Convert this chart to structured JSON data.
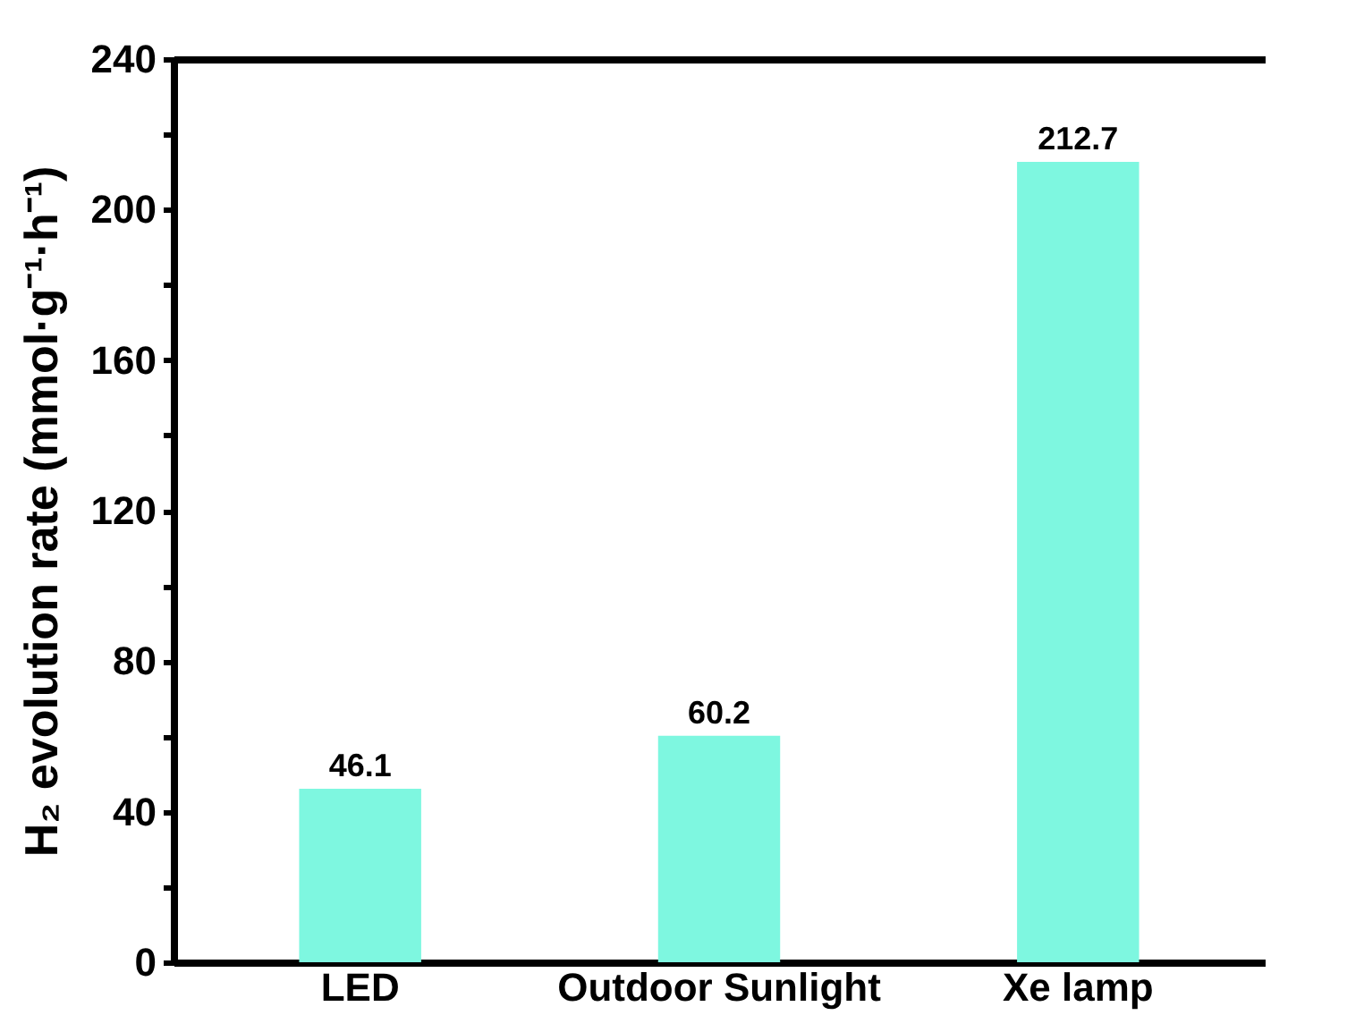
{
  "chart_data": {
    "type": "bar",
    "ylabel": "H₂ evolution rate (mmol·g⁻¹·h⁻¹)",
    "categories": [
      "LED",
      "Outdoor Sunlight",
      "Xe lamp"
    ],
    "values": [
      46.1,
      60.2,
      212.7
    ],
    "color": "#7ef7e0",
    "ylim": [
      0,
      240
    ],
    "yticks": [
      0,
      {
        "value": 20,
        "label": null
      },
      40,
      {
        "value": 60,
        "label": null
      },
      80,
      {
        "value": 100,
        "label": null
      },
      120,
      {
        "value": 140,
        "label": null
      },
      160,
      {
        "value": 180,
        "label": null
      },
      200,
      {
        "value": 220,
        "label": null
      },
      240
    ],
    "data_labels": true,
    "grid": false
  }
}
